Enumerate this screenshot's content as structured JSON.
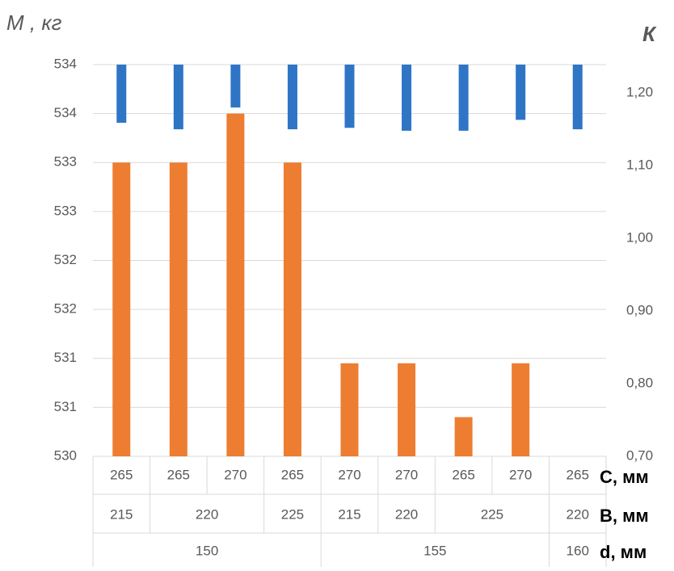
{
  "chart_data": {
    "type": "bar",
    "y_label": "M , кг",
    "y2_label": "К",
    "categories": [
      "265",
      "265",
      "270",
      "265",
      "270",
      "270",
      "265",
      "270",
      "265"
    ],
    "category_levels": [
      {
        "name": "B, мм",
        "groups": [
          {
            "label": "215",
            "span": 1
          },
          {
            "label": "220",
            "span": 2
          },
          {
            "label": "225",
            "span": 1
          },
          {
            "label": "215",
            "span": 1
          },
          {
            "label": "220",
            "span": 1
          },
          {
            "label": "225",
            "span": 2
          },
          {
            "label": "220",
            "span": 1
          }
        ]
      },
      {
        "name": "d, мм",
        "groups": [
          {
            "label": "150",
            "span": 4
          },
          {
            "label": "155",
            "span": 4
          },
          {
            "label": "160",
            "span": 1
          }
        ]
      }
    ],
    "x_label": "C, мм",
    "series": [
      {
        "color": "#ed7d31",
        "axis": "y",
        "values": [
          533,
          533,
          533.5,
          533,
          530.95,
          530.95,
          530.4,
          530.95,
          null
        ]
      },
      {
        "color": "#2e75c6",
        "axis": "y2",
        "values": [
          1.159,
          1.15,
          1.18,
          1.15,
          1.152,
          1.148,
          1.148,
          1.163,
          1.15
        ]
      }
    ],
    "ylim": [
      530,
      534
    ],
    "yticks": [
      530,
      {
        "value": 530.5,
        "label": "531"
      },
      531,
      {
        "value": 531.5,
        "label": "532"
      },
      532,
      {
        "value": 532.5,
        "label": "533"
      },
      533,
      {
        "value": 533.5,
        "label": "534"
      },
      534
    ],
    "y2lim": [
      0.7,
      1.239
    ],
    "y2ticks": [
      {
        "value": 0.7,
        "label": "0,70"
      },
      {
        "value": 0.8,
        "label": "0,80"
      },
      {
        "value": 0.9,
        "label": "0,90"
      },
      {
        "value": 1.0,
        "label": "1,00"
      },
      {
        "value": 1.1,
        "label": "1,10"
      },
      {
        "value": 1.2,
        "label": "1,20"
      }
    ],
    "grid": true
  }
}
